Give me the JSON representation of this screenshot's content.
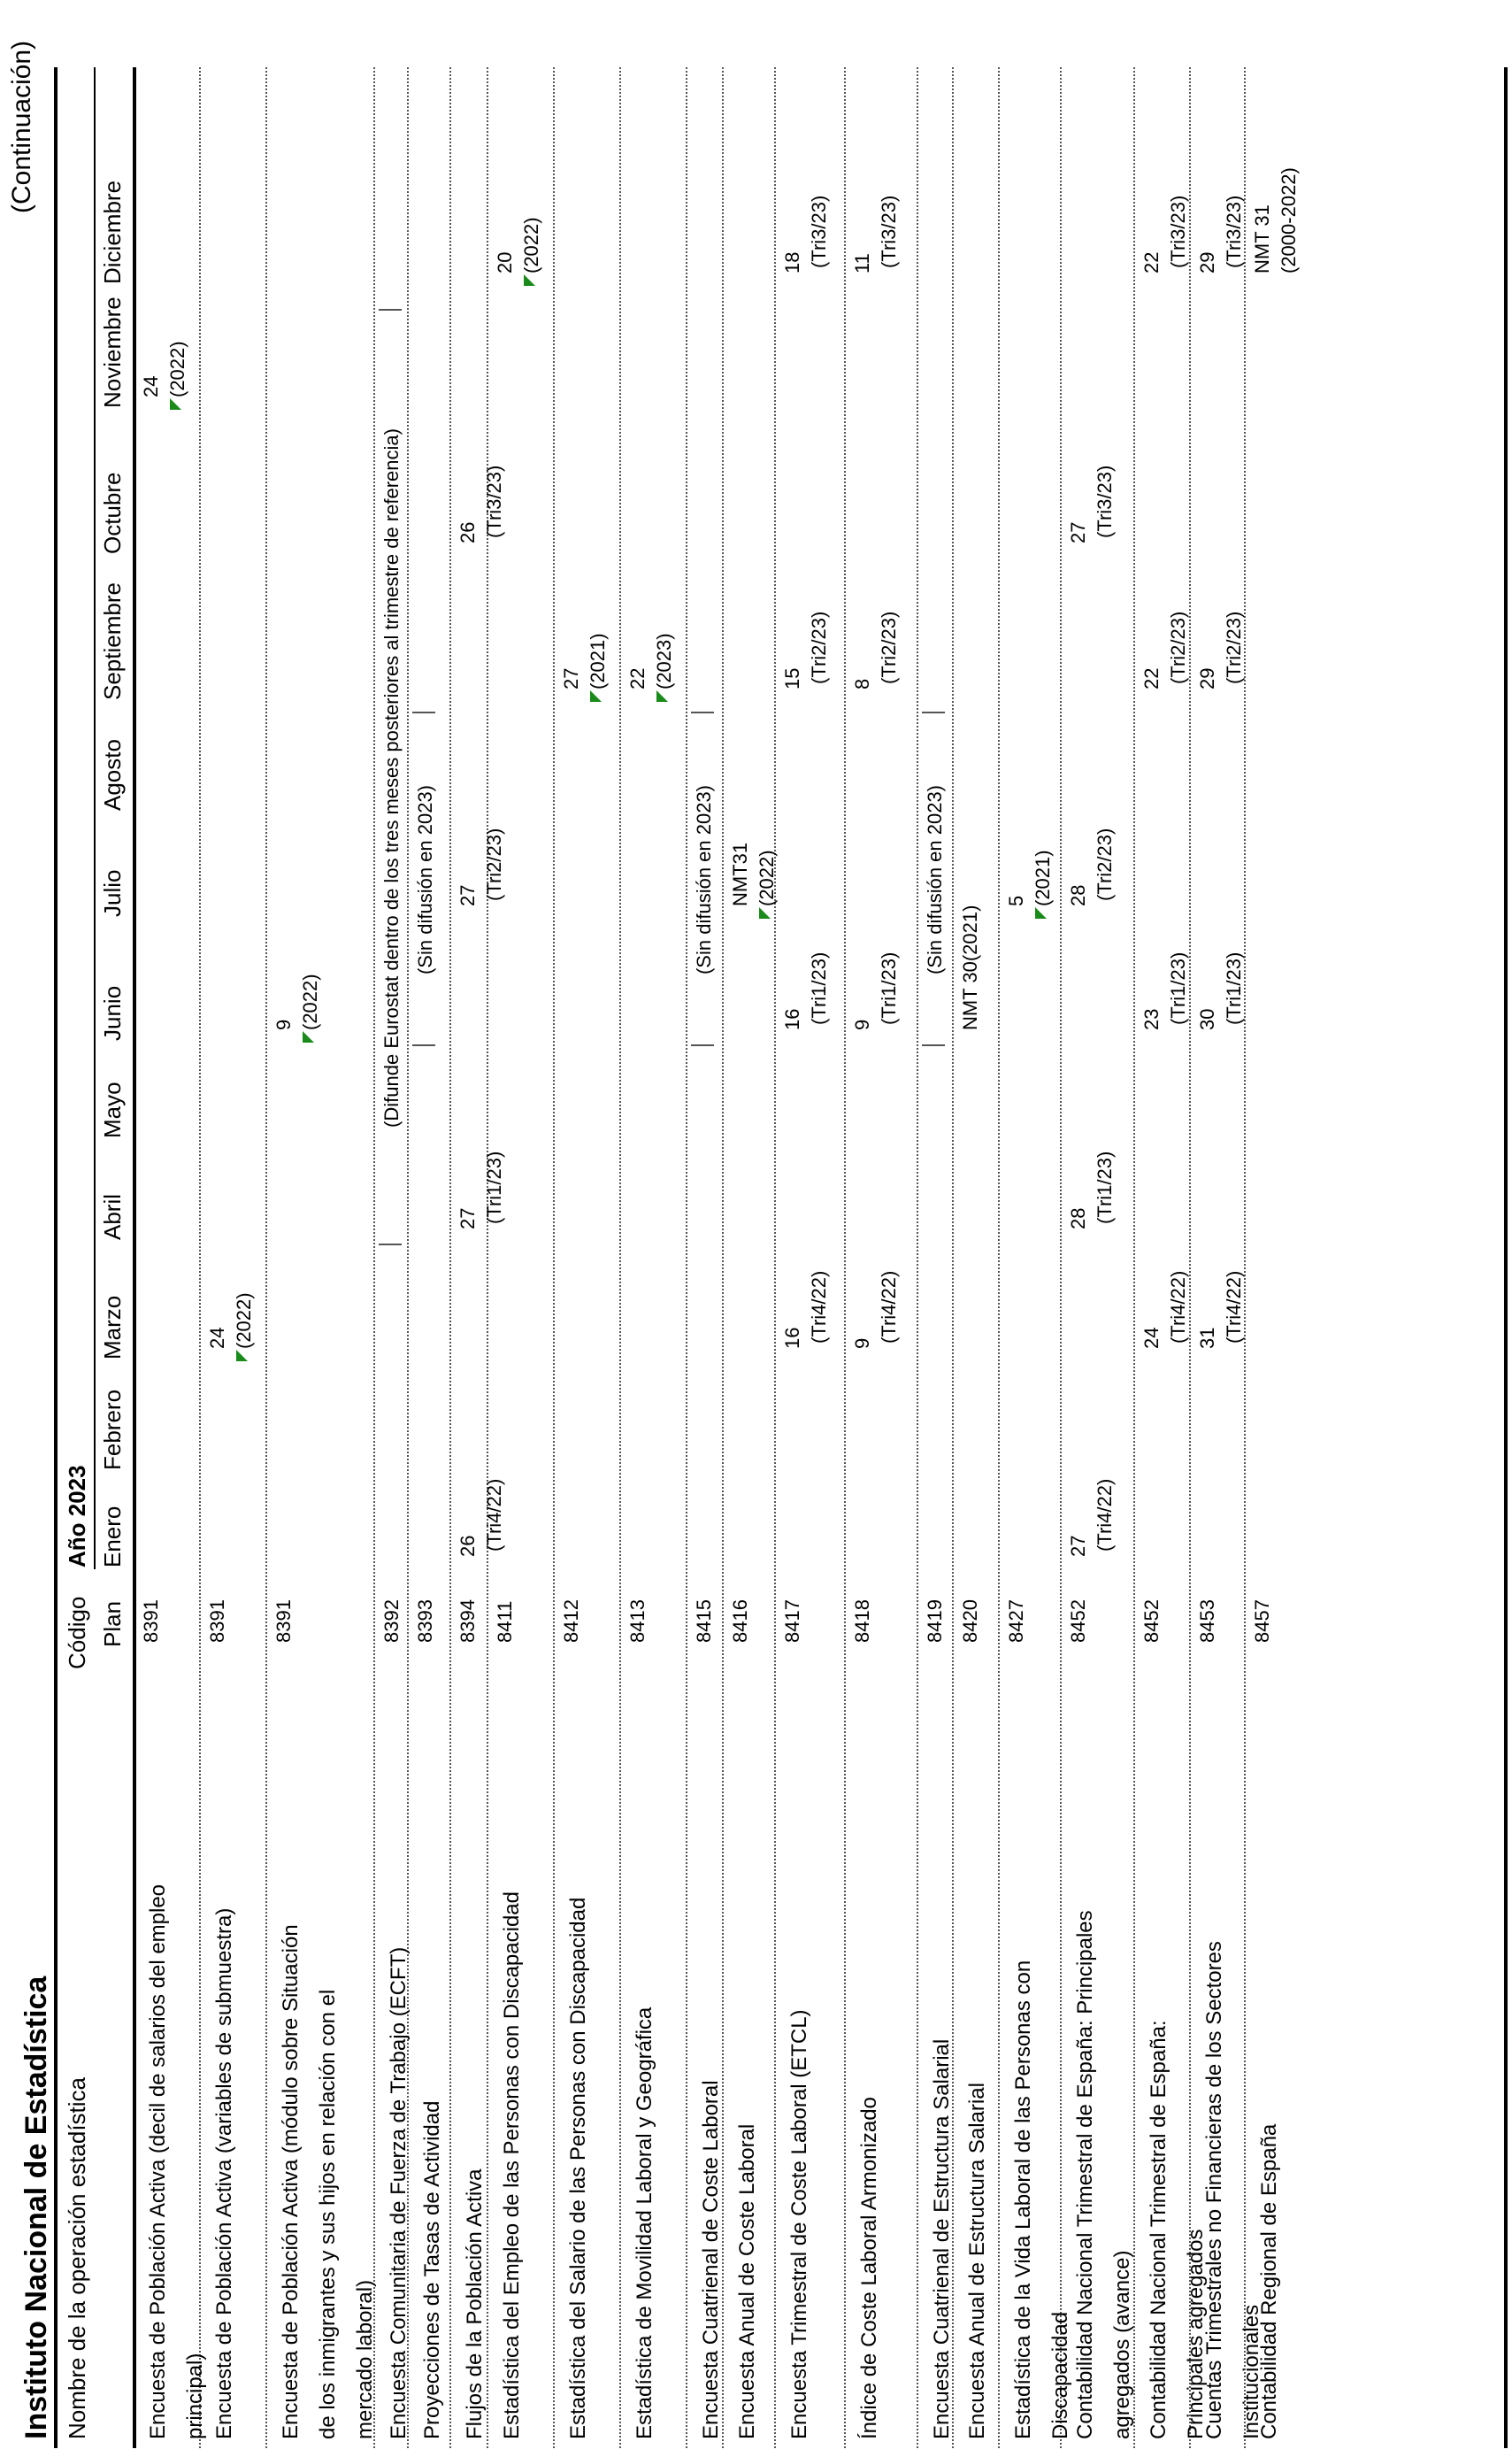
{
  "header": {
    "title": "Instituto Nacional de Estadística",
    "continuation": "(Continuación)",
    "col_name": "Nombre de la operación estadística",
    "col_code": "Código",
    "col_plan": "Plan",
    "year": "Año 2023",
    "months": [
      "Enero",
      "Febrero",
      "Marzo",
      "Abril",
      "Mayo",
      "Junio",
      "Julio",
      "Agosto",
      "Septiembre",
      "Octubre",
      "Noviembre",
      "Diciembre"
    ]
  },
  "rows": [
    {
      "name": [
        "Encuesta de Población Activa (decil de salarios del empleo",
        "principal)"
      ],
      "code": "8391",
      "cells": [
        {
          "m": 10,
          "l": 0,
          "t": "24"
        },
        {
          "m": 10,
          "l": 1,
          "t": "(2022)",
          "flag": true
        }
      ]
    },
    {
      "name": [
        "Encuesta de Población Activa (variables de submuestra)"
      ],
      "code": "8391",
      "cells": [
        {
          "m": 2,
          "l": 0,
          "t": "24"
        },
        {
          "m": 2,
          "l": 1,
          "t": "(2022)",
          "flag": true
        }
      ]
    },
    {
      "name": [
        "Encuesta de Población Activa (módulo sobre Situación",
        "de los inmigrantes y sus hijos en relación con el",
        "mercado laboral)"
      ],
      "code": "8391",
      "cells": [
        {
          "m": 5,
          "l": 0,
          "t": "9"
        },
        {
          "m": 5,
          "l": 1,
          "t": "(2022)",
          "flag": true
        }
      ]
    },
    {
      "name": [
        "Encuesta Comunitaria de Fuerza de Trabajo (ECFT)"
      ],
      "code": "8392",
      "cells": [],
      "span": {
        "from": 3,
        "to": 10,
        "t": "(Difunde Eurostat dentro de los tres meses posteriores al trimestre de referencia)"
      }
    },
    {
      "name": [
        "Proyecciones de Tasas de Actividad"
      ],
      "code": "8393",
      "cells": [],
      "span": {
        "from": 5,
        "to": 7,
        "t": "(Sin difusión en 2023)"
      }
    },
    {
      "name": [
        "Flujos de la Población Activa"
      ],
      "code": "8394",
      "cells": [
        {
          "m": 0,
          "l": 0,
          "t": "26"
        },
        {
          "m": 0,
          "l": 1,
          "t": "(Tri4/22)"
        },
        {
          "m": 3,
          "l": 0,
          "t": "27"
        },
        {
          "m": 3,
          "l": 1,
          "t": "(Tri1/23)"
        },
        {
          "m": 6,
          "l": 0,
          "t": "27"
        },
        {
          "m": 6,
          "l": 1,
          "t": "(Tri2/23)"
        },
        {
          "m": 9,
          "l": 0,
          "t": "26"
        },
        {
          "m": 9,
          "l": 1,
          "t": "(Tri3/23)"
        }
      ]
    },
    {
      "name": [
        "Estadística del Empleo de las Personas con Discapacidad"
      ],
      "code": "8411",
      "cells": [
        {
          "m": 11,
          "l": 0,
          "t": "20"
        },
        {
          "m": 11,
          "l": 1,
          "t": "(2022)",
          "flag": true
        }
      ]
    },
    {
      "name": [
        "Estadística del Salario de las Personas con Discapacidad"
      ],
      "code": "8412",
      "cells": [
        {
          "m": 8,
          "l": 0,
          "t": "27"
        },
        {
          "m": 8,
          "l": 1,
          "t": "(2021)",
          "flag": true
        }
      ]
    },
    {
      "name": [
        "Estadística de Movilidad Laboral y Geográfica"
      ],
      "code": "8413",
      "cells": [
        {
          "m": 8,
          "l": 0,
          "t": "22"
        },
        {
          "m": 8,
          "l": 1,
          "t": "(2023)",
          "flag": true
        }
      ]
    },
    {
      "name": [
        "Encuesta Cuatrienal de Coste Laboral"
      ],
      "code": "8415",
      "cells": [],
      "span": {
        "from": 5,
        "to": 7,
        "t": "(Sin difusión en 2023)"
      }
    },
    {
      "name": [
        "Encuesta Anual de Coste Laboral"
      ],
      "code": "8416",
      "cells": [
        {
          "m": 6,
          "l": 0,
          "t": "NMT31"
        },
        {
          "m": 6,
          "l": 1,
          "t": "(2022)",
          "flag": true
        }
      ]
    },
    {
      "name": [
        "Encuesta Trimestral de Coste Laboral (ETCL)"
      ],
      "code": "8417",
      "cells": [
        {
          "m": 2,
          "l": 0,
          "t": "16"
        },
        {
          "m": 2,
          "l": 1,
          "t": "(Tri4/22)"
        },
        {
          "m": 5,
          "l": 0,
          "t": "16"
        },
        {
          "m": 5,
          "l": 1,
          "t": "(Tri1/23)"
        },
        {
          "m": 8,
          "l": 0,
          "t": "15"
        },
        {
          "m": 8,
          "l": 1,
          "t": "(Tri2/23)"
        },
        {
          "m": 11,
          "l": 0,
          "t": "18"
        },
        {
          "m": 11,
          "l": 1,
          "t": "(Tri3/23)"
        }
      ]
    },
    {
      "name": [
        "Índice de Coste Laboral Armonizado"
      ],
      "code": "8418",
      "cells": [
        {
          "m": 2,
          "l": 0,
          "t": "9"
        },
        {
          "m": 2,
          "l": 1,
          "t": "(Tri4/22)"
        },
        {
          "m": 5,
          "l": 0,
          "t": "9"
        },
        {
          "m": 5,
          "l": 1,
          "t": "(Tri1/23)"
        },
        {
          "m": 8,
          "l": 0,
          "t": "8"
        },
        {
          "m": 8,
          "l": 1,
          "t": "(Tri2/23)"
        },
        {
          "m": 11,
          "l": 0,
          "t": "11"
        },
        {
          "m": 11,
          "l": 1,
          "t": "(Tri3/23)"
        }
      ]
    },
    {
      "name": [
        "Encuesta Cuatrienal de  Estructura Salarial"
      ],
      "code": "8419",
      "cells": [],
      "span": {
        "from": 5,
        "to": 7,
        "t": "(Sin difusión en 2023)"
      }
    },
    {
      "name": [
        "Encuesta Anual de Estructura Salarial"
      ],
      "code": "8420",
      "cells": [
        {
          "m": 5,
          "l": 0,
          "t": "NMT 30(2021)"
        }
      ]
    },
    {
      "name": [
        "Estadística de la Vida Laboral de las Personas con",
        "Discapacidad"
      ],
      "code": "8427",
      "cells": [
        {
          "m": 6,
          "l": 0,
          "t": "5"
        },
        {
          "m": 6,
          "l": 1,
          "t": "(2021)",
          "flag": true
        }
      ]
    },
    {
      "name": [
        "Contabilidad Nacional Trimestral de España:  Principales",
        "agregados (avance)"
      ],
      "code": "8452",
      "cells": [
        {
          "m": 0,
          "l": 0,
          "t": "27"
        },
        {
          "m": 0,
          "l": 1,
          "t": "(Tri4/22)"
        },
        {
          "m": 3,
          "l": 0,
          "t": "28"
        },
        {
          "m": 3,
          "l": 1,
          "t": "(Tri1/23)"
        },
        {
          "m": 6,
          "l": 0,
          "t": "28"
        },
        {
          "m": 6,
          "l": 1,
          "t": "(Tri2/23)"
        },
        {
          "m": 9,
          "l": 0,
          "t": "27"
        },
        {
          "m": 9,
          "l": 1,
          "t": "(Tri3/23)"
        }
      ]
    },
    {
      "name": [
        "Contabilidad Nacional Trimestral de España:",
        "Principales agregados"
      ],
      "code": "8452",
      "cells": [
        {
          "m": 2,
          "l": 0,
          "t": "24"
        },
        {
          "m": 2,
          "l": 1,
          "t": "(Tri4/22)"
        },
        {
          "m": 5,
          "l": 0,
          "t": "23"
        },
        {
          "m": 5,
          "l": 1,
          "t": "(Tri1/23)"
        },
        {
          "m": 8,
          "l": 0,
          "t": "22"
        },
        {
          "m": 8,
          "l": 1,
          "t": "(Tri2/23)"
        },
        {
          "m": 11,
          "l": 0,
          "t": "22"
        },
        {
          "m": 11,
          "l": 1,
          "t": "(Tri3/23)"
        }
      ]
    },
    {
      "name": [
        "Cuentas Trimestrales no Financieras de los Sectores",
        "Institucionales"
      ],
      "code": "8453",
      "cells": [
        {
          "m": 2,
          "l": 0,
          "t": "31"
        },
        {
          "m": 2,
          "l": 1,
          "t": "(Tri4/22)"
        },
        {
          "m": 5,
          "l": 0,
          "t": "30"
        },
        {
          "m": 5,
          "l": 1,
          "t": "(Tri1/23)"
        },
        {
          "m": 8,
          "l": 0,
          "t": "29"
        },
        {
          "m": 8,
          "l": 1,
          "t": "(Tri2/23)"
        },
        {
          "m": 11,
          "l": 0,
          "t": "29"
        },
        {
          "m": 11,
          "l": 1,
          "t": "(Tri3/23)"
        }
      ]
    },
    {
      "name": [
        "Contabilidad Regional de España"
      ],
      "code": "8457",
      "cells": [
        {
          "m": 11,
          "l": 0,
          "t": "NMT 31"
        },
        {
          "m": 11,
          "l": 1,
          "t": "(2000-2022)"
        }
      ]
    }
  ]
}
